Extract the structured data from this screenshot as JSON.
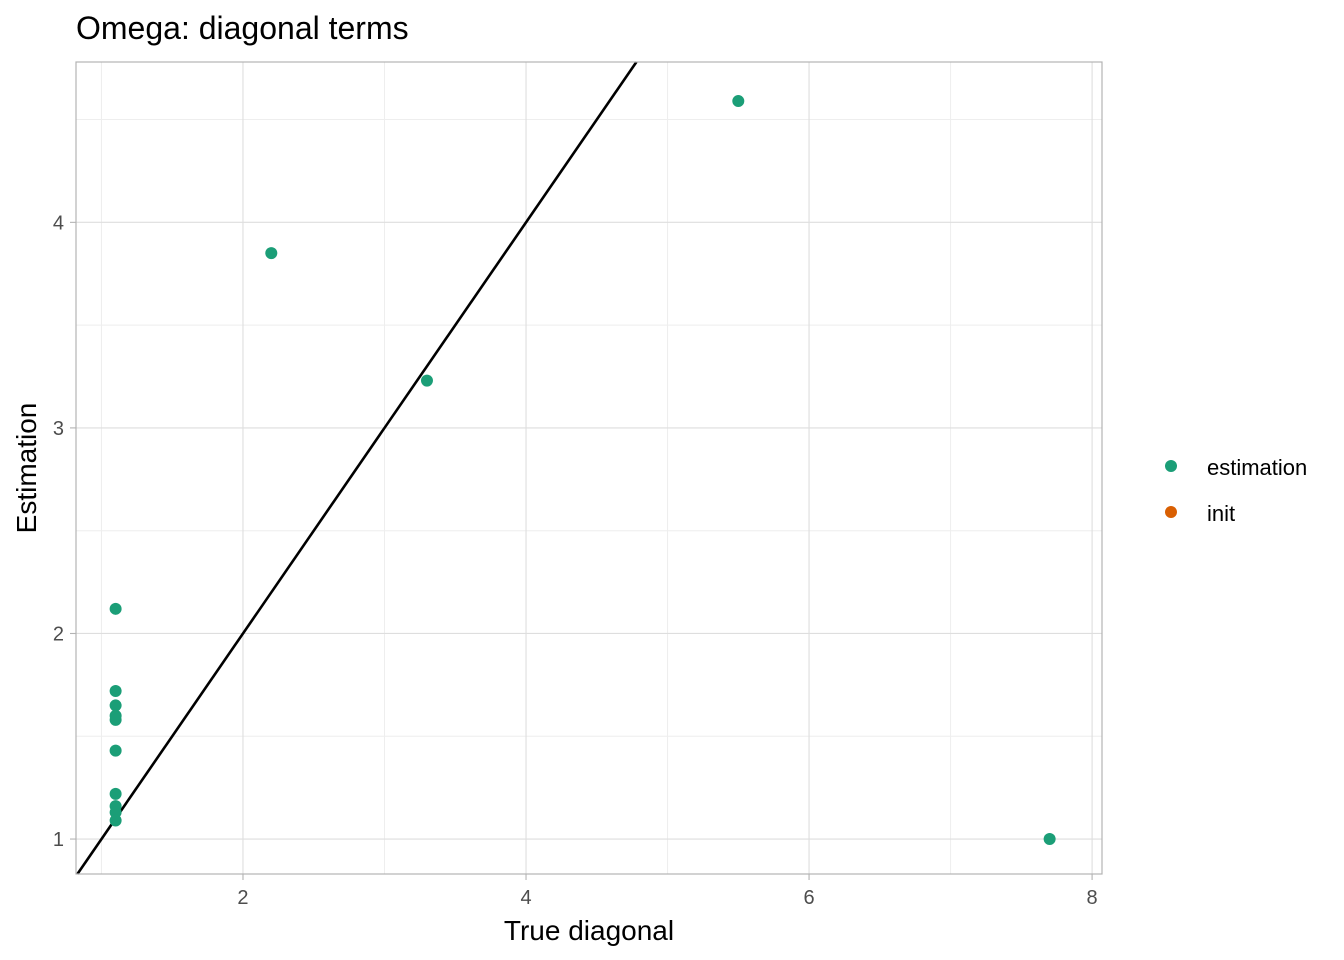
{
  "chart_data": {
    "type": "scatter",
    "title": "Omega: diagonal terms",
    "xlabel": "True diagonal",
    "ylabel": "Estimation",
    "xlim": [
      0.82,
      8.07
    ],
    "ylim": [
      0.83,
      4.78
    ],
    "x_ticks": [
      2,
      4,
      6,
      8
    ],
    "y_ticks": [
      1,
      2,
      3,
      4
    ],
    "x_minor": [
      1,
      3,
      5,
      7
    ],
    "y_minor": [
      1.5,
      2.5,
      3.5,
      4.5
    ],
    "grid": true,
    "reference_line": {
      "slope": 1,
      "intercept": 0
    },
    "legend": {
      "position": "right",
      "entries": [
        {
          "label": "estimation",
          "color": "#1b9e77"
        },
        {
          "label": "init",
          "color": "#d95f02"
        }
      ]
    },
    "series": [
      {
        "name": "estimation",
        "color": "#1b9e77",
        "points": [
          [
            1.1,
            2.12
          ],
          [
            1.1,
            1.72
          ],
          [
            1.1,
            1.65
          ],
          [
            1.1,
            1.6
          ],
          [
            1.1,
            1.58
          ],
          [
            1.1,
            1.43
          ],
          [
            1.1,
            1.22
          ],
          [
            1.1,
            1.16
          ],
          [
            1.1,
            1.13
          ],
          [
            1.1,
            1.09
          ],
          [
            2.2,
            3.85
          ],
          [
            3.3,
            3.23
          ],
          [
            5.5,
            4.59
          ],
          [
            7.7,
            1.0
          ]
        ]
      },
      {
        "name": "init",
        "color": "#d95f02",
        "points": []
      }
    ]
  }
}
